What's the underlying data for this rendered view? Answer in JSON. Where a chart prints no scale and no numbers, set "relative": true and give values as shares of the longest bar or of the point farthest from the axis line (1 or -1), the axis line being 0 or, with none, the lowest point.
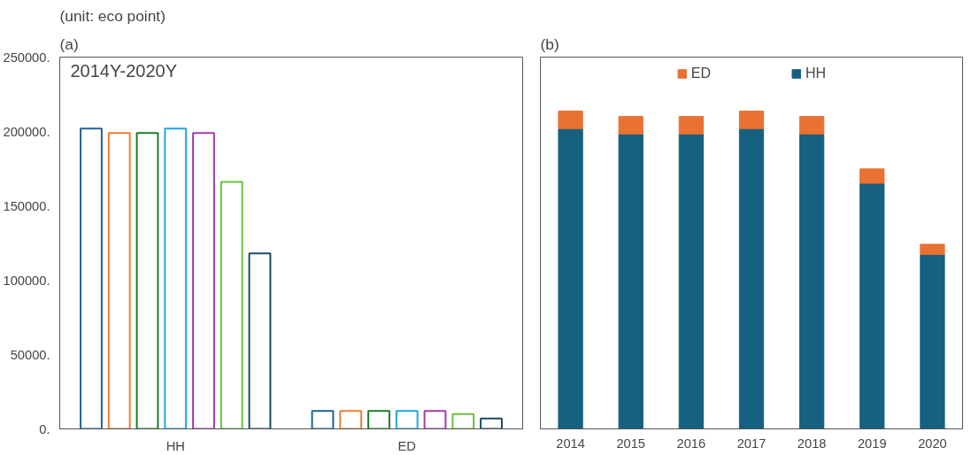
{
  "chart_data": [
    {
      "type": "bar",
      "title": "(a)",
      "subtitle": "(unit: eco point)",
      "categories": [
        "HH",
        "ED"
      ],
      "annotations": [
        "2014Y-2020Y"
      ],
      "ylim": [
        0,
        250000
      ],
      "yticks": [
        {
          "value": 0,
          "label": "0."
        },
        {
          "value": 50000,
          "label": "50000."
        },
        {
          "value": 100000,
          "label": "100000."
        },
        {
          "value": 150000,
          "label": "150000."
        },
        {
          "value": 200000,
          "label": "200000."
        },
        {
          "value": 250000,
          "label": "250000."
        }
      ],
      "grid": false,
      "legend": false,
      "series": [
        {
          "color": "#1f6391",
          "values": [
            202000,
            12000
          ]
        },
        {
          "color": "#ed7d31",
          "values": [
            199000,
            12000
          ]
        },
        {
          "color": "#1e7b2f",
          "values": [
            199000,
            12000
          ]
        },
        {
          "color": "#1ea7e0",
          "values": [
            202000,
            12000
          ]
        },
        {
          "color": "#a23ca8",
          "values": [
            199000,
            12000
          ]
        },
        {
          "color": "#6abf3e",
          "values": [
            166000,
            10000
          ]
        },
        {
          "color": "#1d4a63",
          "values": [
            118000,
            7000
          ]
        }
      ]
    },
    {
      "type": "bar",
      "title": "(b)",
      "categories": [
        "2014",
        "2015",
        "2016",
        "2017",
        "2018",
        "2019",
        "2020"
      ],
      "stacked": true,
      "relative": true,
      "grid": false,
      "legend": "top",
      "series": [
        {
          "name": "HH",
          "color": "#17607f",
          "values": [
            0.945,
            0.928,
            0.928,
            0.945,
            0.928,
            0.773,
            0.549
          ]
        },
        {
          "name": "ED",
          "color": "#e97132",
          "values": [
            0.055,
            0.055,
            0.055,
            0.055,
            0.055,
            0.045,
            0.032
          ]
        }
      ]
    }
  ]
}
